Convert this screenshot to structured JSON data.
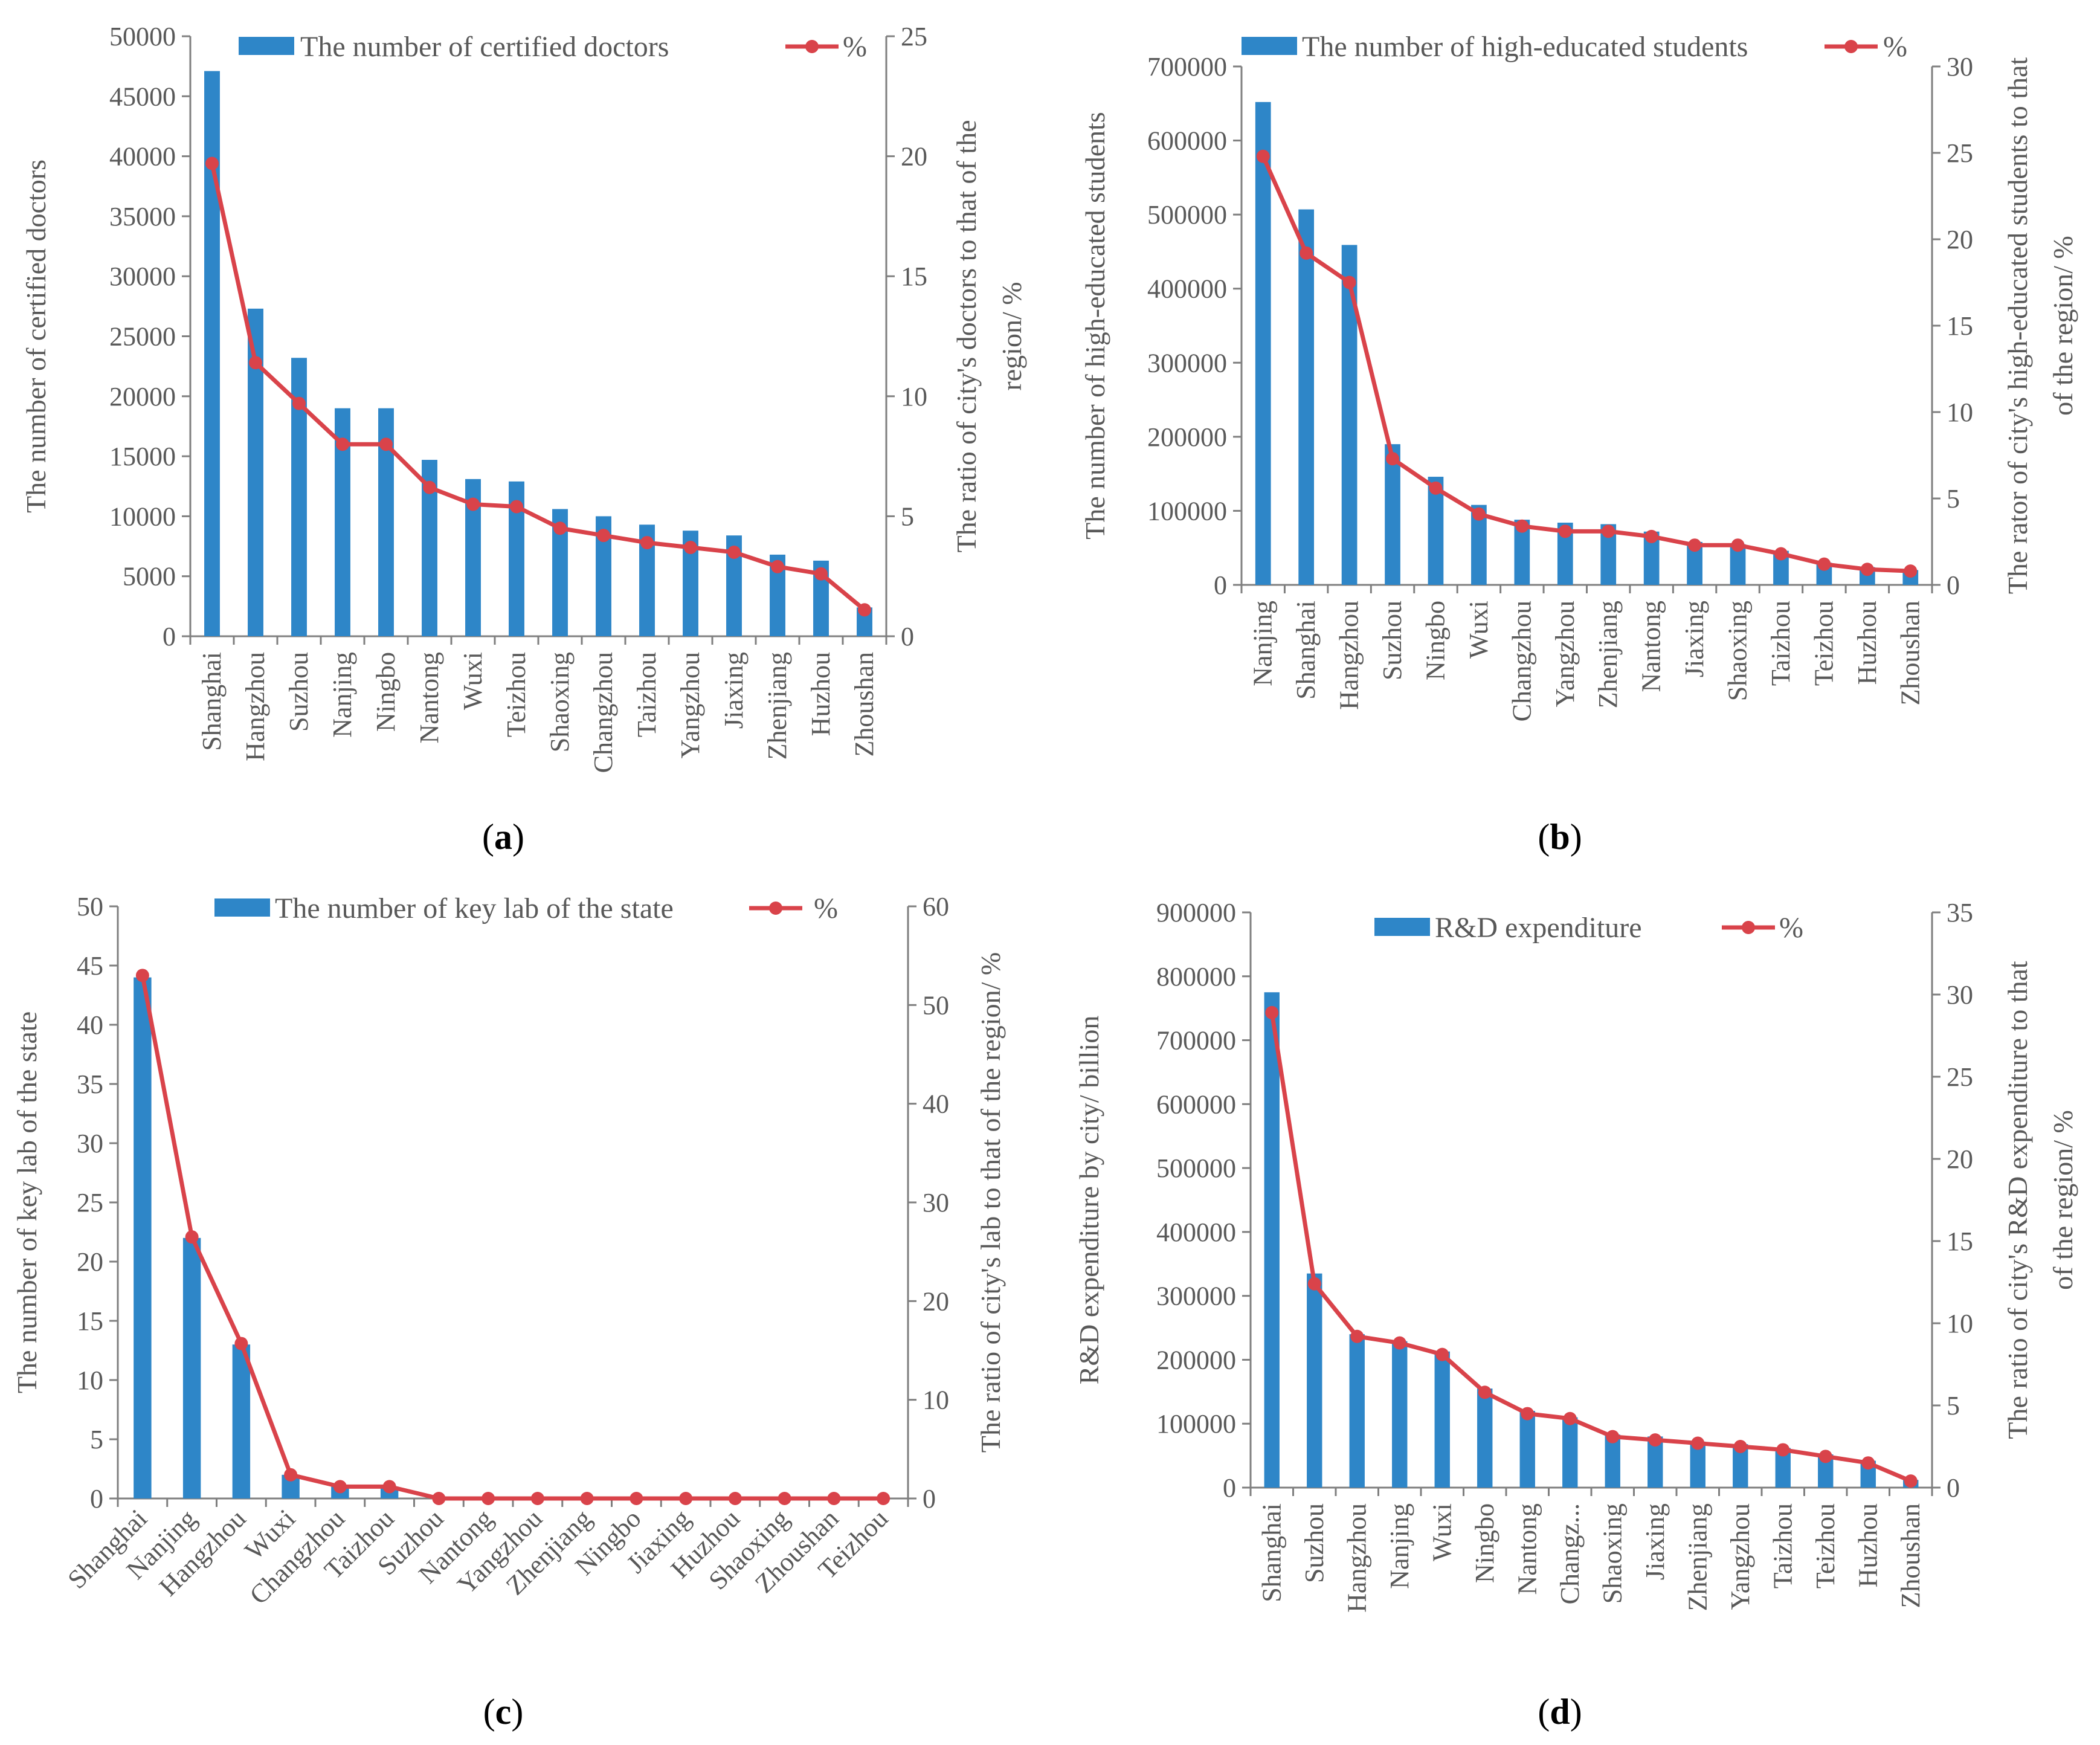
{
  "colors": {
    "bar": "#2E86C8",
    "line": "#D9434A",
    "axis": "#7F7F7F",
    "text": "#595959"
  },
  "chart_data": [
    {
      "id": "a",
      "type": "bar",
      "caption": "a",
      "legend": {
        "bar_label": "The number of certified doctors",
        "line_label": "%"
      },
      "ylabel": "The  number  of certified  doctors",
      "y2label_lines": [
        "The  ratio  of city's  doctors to that of the",
        "region/  %"
      ],
      "ylim": [
        0,
        50000
      ],
      "yticks": [
        "0",
        "5000",
        "10000",
        "15000",
        "20000",
        "25000",
        "30000",
        "35000",
        "40000",
        "45000",
        "50000"
      ],
      "y2lim": [
        0,
        25
      ],
      "y2ticks": [
        "0",
        "5",
        "10",
        "15",
        "20",
        "25"
      ],
      "label_rotation": -90,
      "categories": [
        "Shanghai",
        "Hangzhou",
        "Suzhou",
        "Nanjing",
        "Ningbo",
        "Nantong",
        "Wuxi",
        "Teizhou",
        "Shaoxing",
        "Changzhou",
        "Taizhou",
        "Yangzhou",
        "Jiaxing",
        "Zhenjiang",
        "Huzhou",
        "Zhoushan"
      ],
      "series": [
        {
          "name": "The number of certified doctors",
          "kind": "bar",
          "axis": "left",
          "values": [
            47100,
            27300,
            23200,
            19000,
            19000,
            14700,
            13100,
            12900,
            10600,
            10000,
            9300,
            8800,
            8400,
            6800,
            6300,
            2400
          ]
        },
        {
          "name": "%",
          "kind": "line",
          "axis": "right",
          "values": [
            19.7,
            11.4,
            9.7,
            8.0,
            8.0,
            6.2,
            5.5,
            5.4,
            4.5,
            4.2,
            3.9,
            3.7,
            3.5,
            2.9,
            2.6,
            1.1
          ]
        }
      ]
    },
    {
      "id": "b",
      "type": "bar",
      "caption": "b",
      "legend": {
        "bar_label": "The number of high-educated students",
        "line_label": "%"
      },
      "ylabel": "The number of high-educated students",
      "y2label_lines": [
        "The rator of city's high-educated students to that",
        "of the  region/ %"
      ],
      "ylim": [
        0,
        700000
      ],
      "yticks": [
        "0",
        "100000",
        "200000",
        "300000",
        "400000",
        "500000",
        "600000",
        "700000"
      ],
      "y2lim": [
        0,
        30
      ],
      "y2ticks": [
        "0",
        "5",
        "10",
        "15",
        "20",
        "25",
        "30"
      ],
      "label_rotation": -90,
      "categories": [
        "Nanjing",
        "Shanghai",
        "Hangzhou",
        "Suzhou",
        "Ningbo",
        "Wuxi",
        "Changzhou",
        "Yangzhou",
        "Zhenjiang",
        "Nantong",
        "Jiaxing",
        "Shaoxing",
        "Taizhou",
        "Teizhou",
        "Huzhou",
        "Zhoushan"
      ],
      "series": [
        {
          "name": "The number of high-educated students",
          "kind": "bar",
          "axis": "left",
          "values": [
            652000,
            507000,
            459000,
            190000,
            146000,
            108000,
            88000,
            84000,
            82000,
            72000,
            58000,
            55000,
            46000,
            30000,
            24000,
            20000
          ]
        },
        {
          "name": "%",
          "kind": "line",
          "axis": "right",
          "values": [
            24.8,
            19.2,
            17.5,
            7.3,
            5.6,
            4.1,
            3.4,
            3.1,
            3.1,
            2.8,
            2.3,
            2.3,
            1.8,
            1.2,
            0.9,
            0.8
          ]
        }
      ]
    },
    {
      "id": "c",
      "type": "bar",
      "caption": "c",
      "legend": {
        "bar_label": "The number of key lab of the state",
        "line_label": "%"
      },
      "ylabel": "The number of key lab of the state",
      "y2label_lines": [
        "The ratio of city's lab to that of the region/ %"
      ],
      "ylim": [
        0,
        50
      ],
      "yticks": [
        "0",
        "5",
        "10",
        "15",
        "20",
        "25",
        "30",
        "35",
        "40",
        "45",
        "50"
      ],
      "y2lim": [
        0,
        60
      ],
      "y2ticks": [
        "0",
        "10",
        "20",
        "30",
        "40",
        "50",
        "60"
      ],
      "label_rotation": -45,
      "categories": [
        "Shanghai",
        "Nanjing",
        "Hangzhou",
        "Wuxi",
        "Changzhou",
        "Taizhou",
        "Suzhou",
        "Nantong",
        "Yangzhou",
        "Zhenjiang",
        "Ningbo",
        "Jiaxing",
        "Huzhou",
        "Shaoxing",
        "Zhoushan",
        "Teizhou"
      ],
      "series": [
        {
          "name": "The number of key lab of the state",
          "kind": "bar",
          "axis": "left",
          "values": [
            44,
            22,
            13,
            2,
            1,
            1,
            0,
            0,
            0,
            0,
            0,
            0,
            0,
            0,
            0,
            0
          ]
        },
        {
          "name": "%",
          "kind": "line",
          "axis": "right",
          "values": [
            53.0,
            26.5,
            15.7,
            2.4,
            1.2,
            1.2,
            0,
            0,
            0,
            0,
            0,
            0,
            0,
            0,
            0,
            0
          ]
        }
      ]
    },
    {
      "id": "d",
      "type": "bar",
      "caption": "d",
      "legend": {
        "bar_label": "R&D expenditure",
        "line_label": "%"
      },
      "ylabel": "R&D expenditure by city/ billion",
      "y2label_lines": [
        "The ratio of city's R&D expenditure to that",
        "of the region/  %"
      ],
      "ylim": [
        0,
        900000
      ],
      "yticks": [
        "0",
        "100000",
        "200000",
        "300000",
        "400000",
        "500000",
        "600000",
        "700000",
        "800000",
        "900000"
      ],
      "y2lim": [
        0,
        35
      ],
      "y2ticks": [
        "0",
        "5",
        "10",
        "15",
        "20",
        "25",
        "30",
        "35"
      ],
      "label_rotation": -90,
      "categories": [
        "Shanghai",
        "Suzhou",
        "Hangzhou",
        "Nanjing",
        "Wuxi",
        "Ningbo",
        "Nantong",
        "Changz...",
        "Shaoxing",
        "Jiaxing",
        "Zhenjiang",
        "Yangzhou",
        "Taizhou",
        "Teizhou",
        "Huzhou",
        "Zhoushan"
      ],
      "series": [
        {
          "name": "R&D expenditure",
          "kind": "bar",
          "axis": "left",
          "values": [
            775000,
            335000,
            240000,
            229000,
            213000,
            155000,
            120000,
            110000,
            83000,
            80000,
            72000,
            68000,
            62000,
            52000,
            42000,
            12000
          ]
        },
        {
          "name": "%",
          "kind": "line",
          "axis": "right",
          "values": [
            28.9,
            12.4,
            9.2,
            8.8,
            8.1,
            5.8,
            4.5,
            4.2,
            3.1,
            2.9,
            2.7,
            2.5,
            2.3,
            1.9,
            1.5,
            0.4
          ]
        }
      ]
    }
  ]
}
